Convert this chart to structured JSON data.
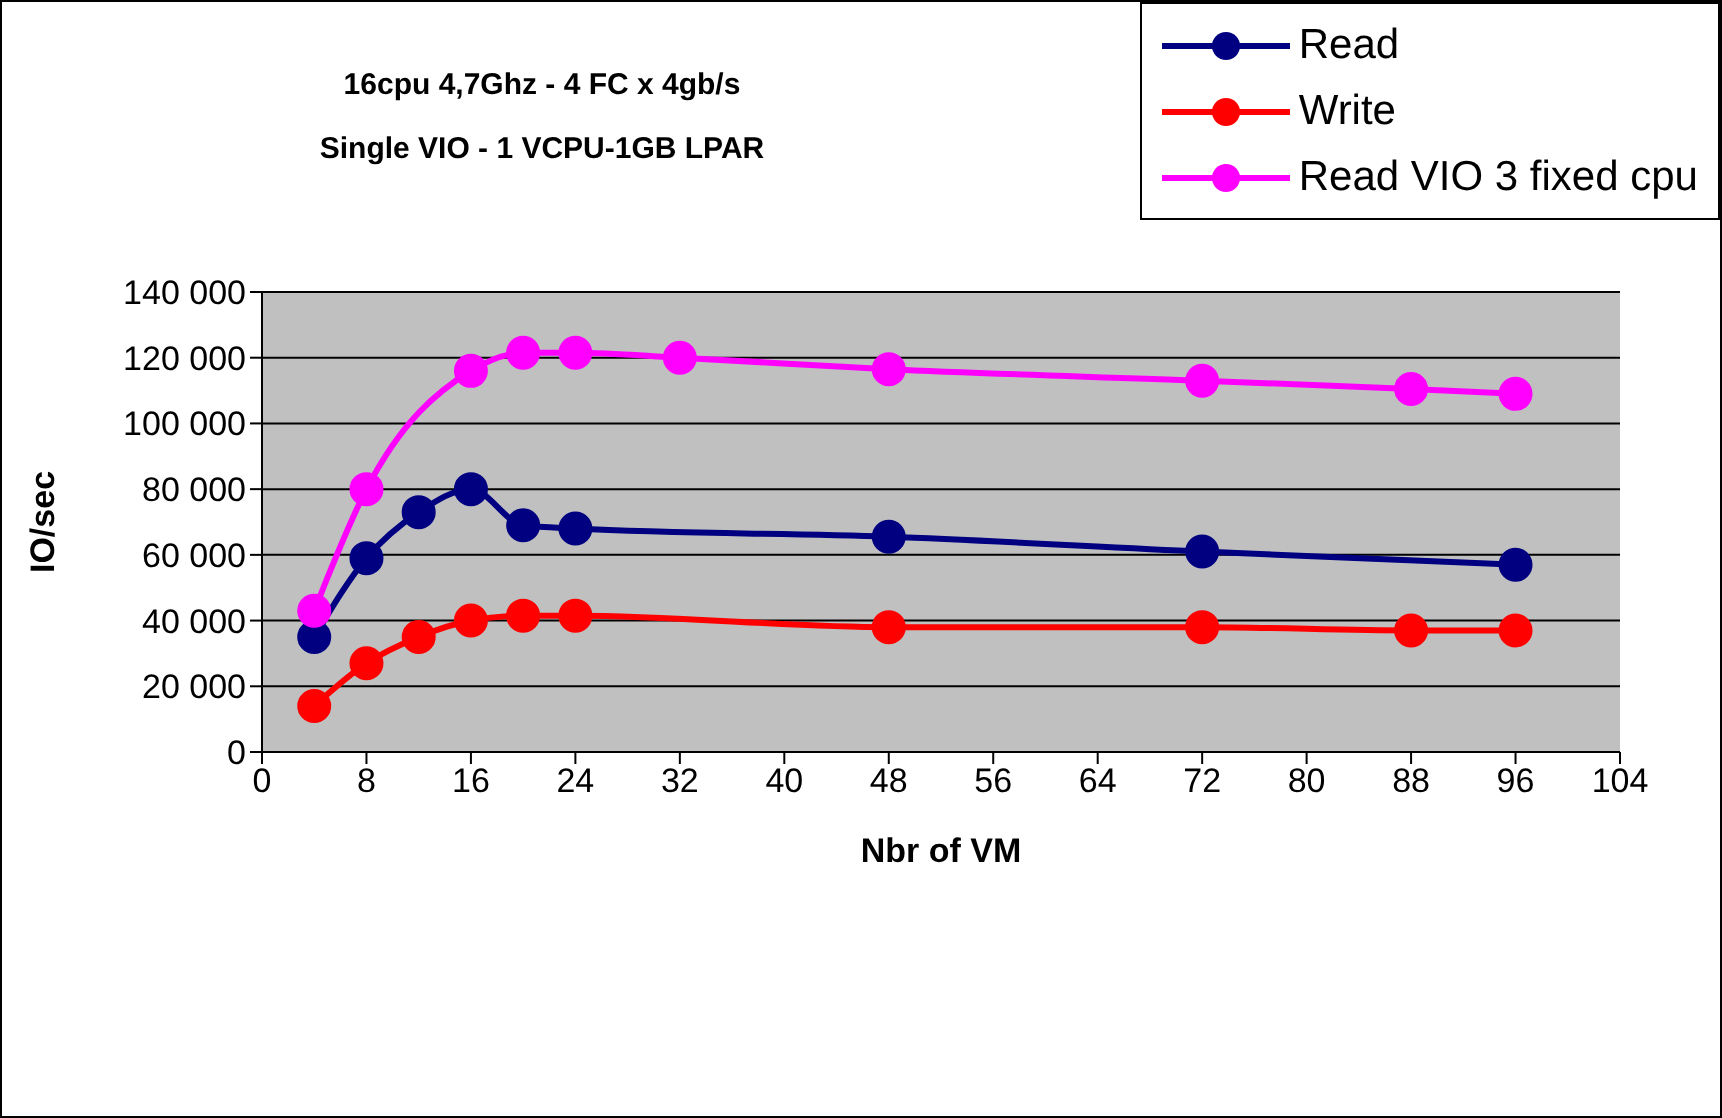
{
  "chart_data": {
    "type": "line",
    "title": "16cpu 4,7Ghz - 4 FC x 4gb/s",
    "subtitle": "Single VIO - 1 VCPU-1GB LPAR",
    "xlabel": "Nbr of VM",
    "ylabel": "IO/sec",
    "xlim": [
      0,
      104
    ],
    "xticks": [
      0,
      8,
      16,
      24,
      32,
      40,
      48,
      56,
      64,
      72,
      80,
      88,
      96,
      104
    ],
    "ylim": [
      0,
      140000
    ],
    "yticks": [
      {
        "value": 0,
        "label": "0"
      },
      {
        "value": 20000,
        "label": "20 000"
      },
      {
        "value": 40000,
        "label": "40 000"
      },
      {
        "value": 60000,
        "label": "60 000"
      },
      {
        "value": 80000,
        "label": "80 000"
      },
      {
        "value": 100000,
        "label": "100 000"
      },
      {
        "value": 120000,
        "label": "120 000"
      },
      {
        "value": 140000,
        "label": "140 000"
      }
    ],
    "grid": "y",
    "legend": "top right",
    "marker": "circle",
    "line_style": "solid",
    "series": [
      {
        "name": "Read",
        "color": "#000080",
        "x": [
          4,
          8,
          12,
          16,
          20,
          24,
          48,
          72,
          96
        ],
        "values": [
          35000,
          59000,
          73000,
          80000,
          69000,
          68000,
          65500,
          61000,
          57000
        ]
      },
      {
        "name": "Write",
        "color": "#ff0000",
        "x": [
          4,
          8,
          12,
          16,
          20,
          24,
          48,
          72,
          88,
          96
        ],
        "values": [
          14000,
          27000,
          35000,
          40000,
          41500,
          41500,
          38000,
          38000,
          37000,
          37000
        ]
      },
      {
        "name": "Read VIO 3 fixed cpu",
        "color": "#ff00ff",
        "x": [
          4,
          8,
          16,
          20,
          24,
          32,
          48,
          72,
          88,
          96
        ],
        "values": [
          43000,
          80000,
          116000,
          121500,
          121500,
          120000,
          116500,
          113000,
          110500,
          109000
        ]
      }
    ]
  }
}
